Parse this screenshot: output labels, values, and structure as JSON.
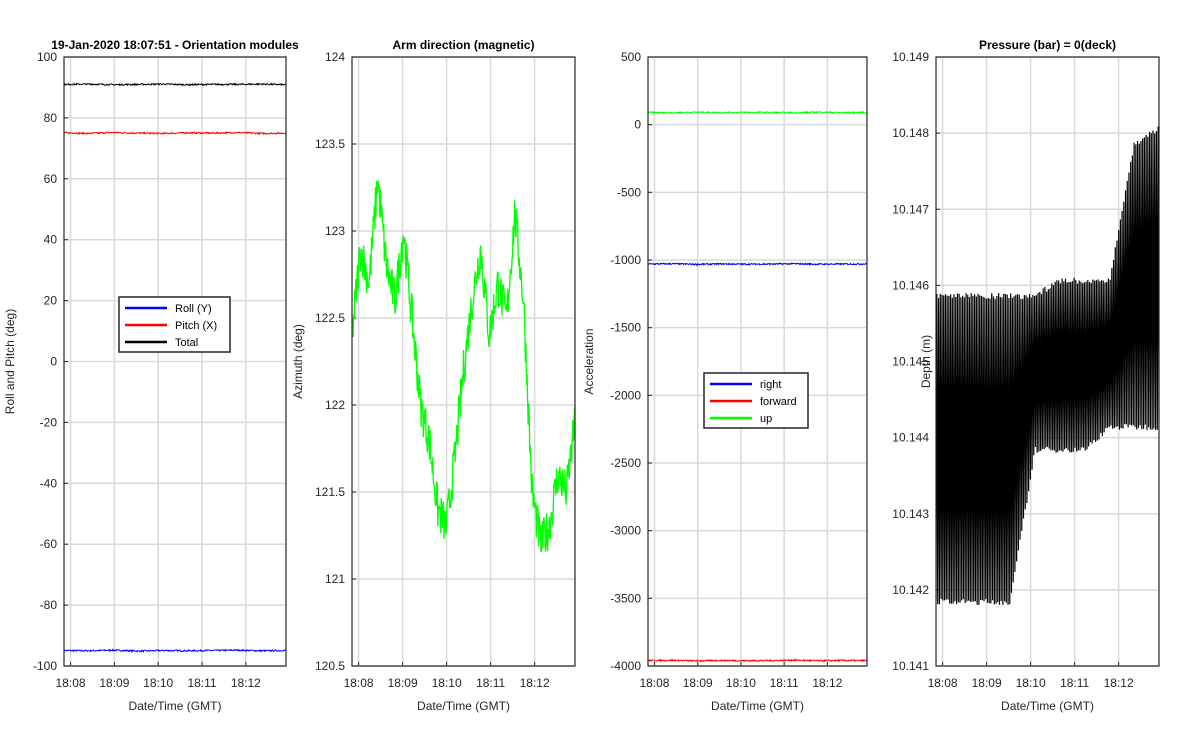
{
  "chart_data": [
    {
      "type": "line",
      "title": "19-Jan-2020 18:07:51 - Orientation modules",
      "xlabel": "Date/Time (GMT)",
      "ylabel": "Roll and Pitch (deg)",
      "xlim": [
        "18:07:51",
        "18:12:55"
      ],
      "x_ticks": [
        "18:08",
        "18:09",
        "18:10",
        "18:11",
        "18:12"
      ],
      "ylim": [
        -100,
        100
      ],
      "y_ticks": [
        "-100",
        "-80",
        "-60",
        "-40",
        "-20",
        "0",
        "20",
        "40",
        "60",
        "80",
        "100"
      ],
      "grid": true,
      "legend_position": "center",
      "series": [
        {
          "name": "Roll (Y)",
          "color": "#0000ff",
          "values": [
            -94.9,
            -95.0,
            -94.8,
            -95.1,
            -94.9,
            -95.0,
            -94.9,
            -94.8,
            -95.0,
            -94.9
          ]
        },
        {
          "name": "Pitch (X)",
          "color": "#ff0000",
          "values": [
            75.1,
            74.9,
            75.2,
            75.0,
            74.9,
            75.1,
            75.0,
            75.2,
            74.9,
            75.0
          ]
        },
        {
          "name": "Total",
          "color": "#000000",
          "values": [
            91.0,
            91.1,
            90.9,
            91.0,
            91.1,
            90.9,
            91.0,
            91.0,
            91.1,
            90.9
          ]
        }
      ]
    },
    {
      "type": "line",
      "title": "Arm direction (magnetic)",
      "xlabel": "Date/Time (GMT)",
      "ylabel": "Azimuth (deg)",
      "xlim": [
        "18:07:51",
        "18:12:55"
      ],
      "x_ticks": [
        "18:08",
        "18:09",
        "18:10",
        "18:11",
        "18:12"
      ],
      "ylim": [
        120.5,
        124
      ],
      "y_ticks": [
        "120.5",
        "121",
        "121.5",
        "122",
        "122.5",
        "123",
        "123.5",
        "124"
      ],
      "grid": true,
      "series": [
        {
          "color": "#00ff00",
          "values": [
            122.4,
            122.9,
            122.7,
            123.3,
            122.8,
            122.6,
            123.0,
            122.5,
            122.0,
            121.8,
            121.4,
            121.3,
            121.7,
            122.2,
            122.6,
            122.9,
            122.4,
            122.7,
            122.5,
            123.1,
            122.6,
            121.5,
            121.2,
            121.3,
            121.6,
            121.5,
            121.9
          ]
        }
      ]
    },
    {
      "type": "line",
      "title": "",
      "xlabel": "Date/Time (GMT)",
      "ylabel": "Acceleration",
      "xlim": [
        "18:07:51",
        "18:12:55"
      ],
      "x_ticks": [
        "18:08",
        "18:09",
        "18:10",
        "18:11",
        "18:12"
      ],
      "ylim": [
        -4000,
        500
      ],
      "y_ticks": [
        "-4000",
        "-3500",
        "-3000",
        "-2500",
        "-2000",
        "-1500",
        "-1000",
        "-500",
        "0",
        "500"
      ],
      "grid": true,
      "legend_position": "center",
      "series": [
        {
          "name": "right",
          "color": "#0000ff",
          "values": [
            -1030,
            -1028,
            -1032,
            -1029,
            -1031,
            -1030,
            -1028,
            -1031,
            -1030,
            -1029
          ]
        },
        {
          "name": "forward",
          "color": "#ff0000",
          "values": [
            -3960,
            -3958,
            -3962,
            -3959,
            -3961,
            -3960,
            -3957,
            -3961,
            -3959,
            -3960
          ]
        },
        {
          "name": "up",
          "color": "#00ff00",
          "values": [
            90,
            88,
            92,
            89,
            91,
            90,
            88,
            92,
            89,
            90
          ]
        }
      ]
    },
    {
      "type": "line",
      "title": "Pressure (bar) = 0(deck)",
      "xlabel": "Date/Time (GMT)",
      "ylabel": "Depth (m)",
      "xlim": [
        "18:07:51",
        "18:12:55"
      ],
      "x_ticks": [
        "18:08",
        "18:09",
        "18:10",
        "18:11",
        "18:12"
      ],
      "ylim": [
        10.141,
        10.149
      ],
      "y_ticks": [
        "10.141",
        "10.142",
        "10.143",
        "10.144",
        "10.145",
        "10.146",
        "10.147",
        "10.148",
        "10.149"
      ],
      "grid": true,
      "series": [
        {
          "color": "#000000",
          "low": [
            10.1418,
            10.1418,
            10.1418,
            10.1418,
            10.1438,
            10.1438,
            10.1438,
            10.1441,
            10.1441,
            10.1441
          ],
          "high": [
            10.1459,
            10.1459,
            10.1459,
            10.1459,
            10.1459,
            10.1461,
            10.1461,
            10.1461,
            10.1479,
            10.1481
          ]
        }
      ]
    }
  ]
}
